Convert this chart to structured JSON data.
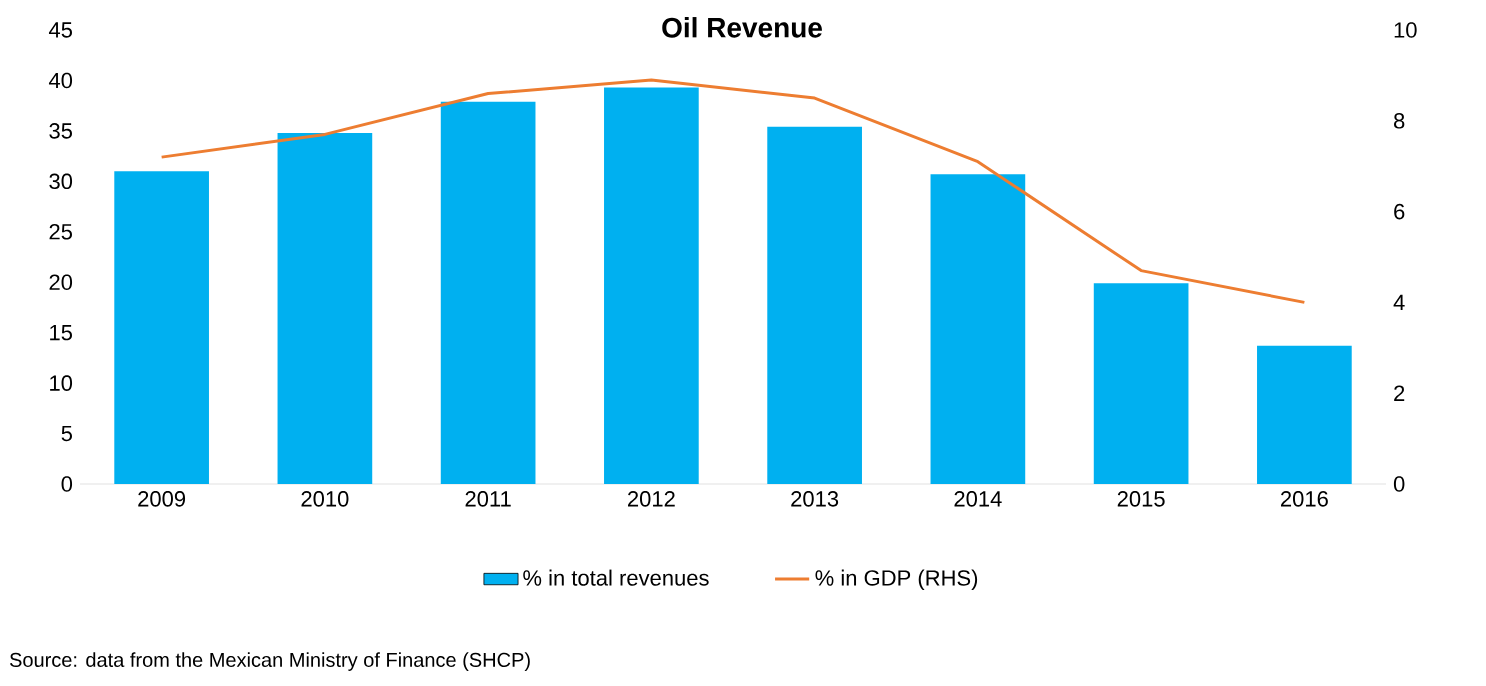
{
  "chart_data": {
    "type": "bar",
    "title": "Oil Revenue",
    "categories": [
      "2009",
      "2010",
      "2011",
      "2012",
      "2013",
      "2014",
      "2015",
      "2016"
    ],
    "series": [
      {
        "name": "% in total revenues",
        "color": "#00b0f0",
        "values": [
          31,
          34.8,
          37.9,
          39.3,
          35.4,
          30.7,
          19.9,
          13.7
        ]
      },
      {
        "name": "% in GDP (RHS)",
        "type": "line",
        "axis": "y2",
        "color": "#ed7d31",
        "values": [
          7.2,
          7.7,
          8.6,
          8.9,
          8.5,
          7.1,
          4.7,
          4.0
        ]
      }
    ],
    "ylim": [
      0,
      45
    ],
    "yticks": [
      0,
      5,
      10,
      15,
      20,
      25,
      30,
      35,
      40,
      45
    ],
    "y2lim": [
      0,
      10
    ],
    "y2ticks": [
      0,
      2,
      4,
      6,
      8,
      10
    ],
    "grid": false,
    "legend": "bottom",
    "marker": "none",
    "line_style": "solid",
    "annotations": [
      "Source: data from the Mexican Ministry of Finance (SHCP)"
    ]
  }
}
